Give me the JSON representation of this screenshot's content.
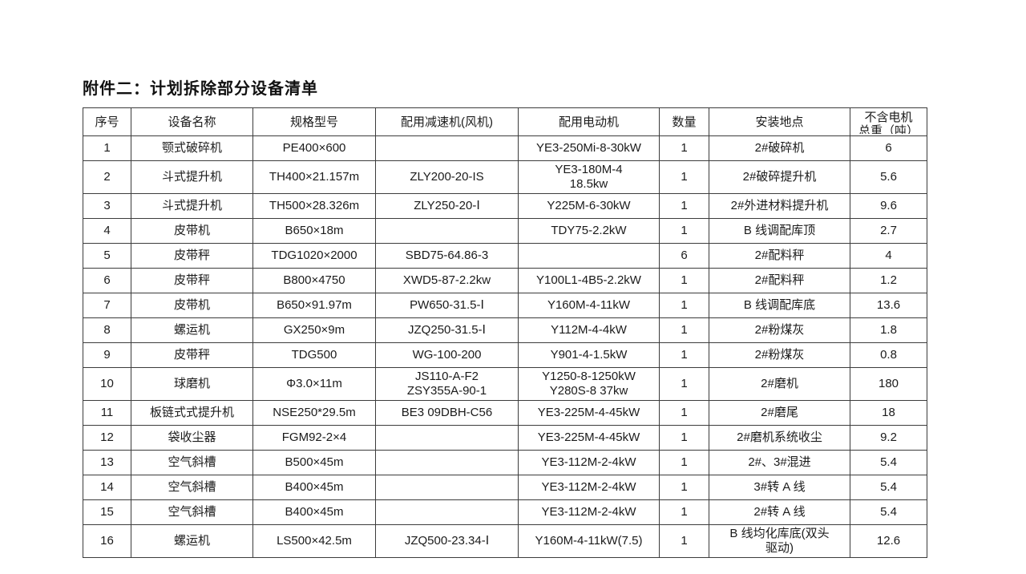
{
  "title": "附件二：计划拆除部分设备清单",
  "colors": {
    "background": "#ffffff",
    "text": "#1b1b1b",
    "border": "#3c3c3c"
  },
  "table": {
    "headers": [
      "序号",
      "设备名称",
      "规格型号",
      "配用减速机(风机)",
      "配用电动机",
      "数量",
      "安装地点",
      "不含电机\n总重（吨）"
    ],
    "rows": [
      [
        "1",
        "颚式破碎机",
        "PE400×600",
        "",
        "YE3-250Mi-8-30kW",
        "1",
        "2#破碎机",
        "6"
      ],
      [
        "2",
        "斗式提升机",
        "TH400×21.157m",
        "ZLY200-20-IS",
        "YE3-180M-4\n18.5kw",
        "1",
        "2#破碎提升机",
        "5.6"
      ],
      [
        "3",
        "斗式提升机",
        "TH500×28.326m",
        "ZLY250-20-Ⅰ",
        "Y225M-6-30kW",
        "1",
        "2#外进材料提升机",
        "9.6"
      ],
      [
        "4",
        "皮带机",
        "B650×18m",
        "",
        "TDY75-2.2kW",
        "1",
        "B 线调配库顶",
        "2.7"
      ],
      [
        "5",
        "皮带秤",
        "TDG1020×2000",
        "SBD75-64.86-3",
        "",
        "6",
        "2#配料秤",
        "4"
      ],
      [
        "6",
        "皮带秤",
        "B800×4750",
        "XWD5-87-2.2kw",
        "Y100L1-4B5-2.2kW",
        "1",
        "2#配料秤",
        "1.2"
      ],
      [
        "7",
        "皮带机",
        "B650×91.97m",
        "PW650-31.5-Ⅰ",
        "Y160M-4-11kW",
        "1",
        "B 线调配库底",
        "13.6"
      ],
      [
        "8",
        "螺运机",
        "GX250×9m",
        "JZQ250-31.5-Ⅰ",
        "Y112M-4-4kW",
        "1",
        "2#粉煤灰",
        "1.8"
      ],
      [
        "9",
        "皮带秤",
        "TDG500",
        "WG-100-200",
        "Y901-4-1.5kW",
        "1",
        "2#粉煤灰",
        "0.8"
      ],
      [
        "10",
        "球磨机",
        "Φ3.0×11m",
        "JS110-A-F2\nZSY355A-90-1",
        "Y1250-8-1250kW\nY280S-8  37kw",
        "1",
        "2#磨机",
        "180"
      ],
      [
        "11",
        "板链式式提升机",
        "NSE250*29.5m",
        "BE3 09DBH-C56",
        "YE3-225M-4-45kW",
        "1",
        "2#磨尾",
        "18"
      ],
      [
        "12",
        "袋收尘器",
        "FGM92-2×4",
        "",
        "YE3-225M-4-45kW",
        "1",
        "2#磨机系统收尘",
        "9.2"
      ],
      [
        "13",
        "空气斜槽",
        "B500×45m",
        "",
        "YE3-112M-2-4kW",
        "1",
        "2#、3#混进",
        "5.4"
      ],
      [
        "14",
        "空气斜槽",
        "B400×45m",
        "",
        "YE3-112M-2-4kW",
        "1",
        "3#转 A 线",
        "5.4"
      ],
      [
        "15",
        "空气斜槽",
        "B400×45m",
        "",
        "YE3-112M-2-4kW",
        "1",
        "2#转 A 线",
        "5.4"
      ],
      [
        "16",
        "螺运机",
        "LS500×42.5m",
        "JZQ500-23.34-Ⅰ",
        "Y160M-4-11kW(7.5)",
        "1",
        "B 线均化库底(双头\n驱动)",
        "12.6"
      ]
    ]
  }
}
